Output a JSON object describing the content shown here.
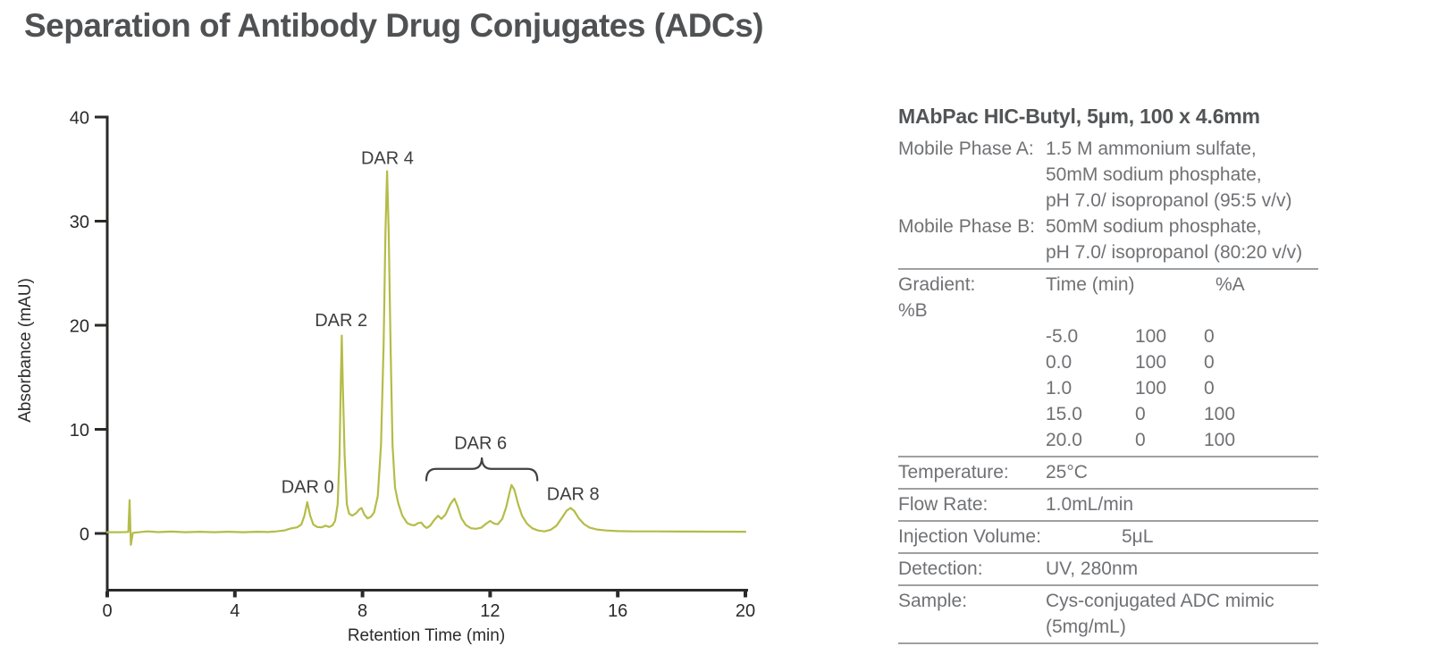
{
  "title": "Separation of Antibody Drug Conjugates (ADCs)",
  "chart_data": {
    "type": "line",
    "title": "",
    "xlabel": "Retention Time (min)",
    "ylabel": "Absorbance (mAU)",
    "xlim": [
      0,
      20
    ],
    "ylim": [
      -5.5,
      40
    ],
    "xticks": [
      "0",
      "4",
      "8",
      "12",
      "16",
      "20"
    ],
    "yticks": [
      "0",
      "10",
      "20",
      "30",
      "40"
    ],
    "grid": false,
    "legend_position": "none",
    "line_color": "#b5bc48",
    "axis_color": "#2b2a29",
    "annotation_color": "#414143",
    "series": [
      {
        "name": "UV 280nm chromatogram",
        "x_unit": "min",
        "y_unit": "mAU",
        "points": [
          [
            0.0,
            0.12
          ],
          [
            0.3,
            0.12
          ],
          [
            0.55,
            0.13
          ],
          [
            0.66,
            0.15
          ],
          [
            0.7,
            3.2
          ],
          [
            0.74,
            -1.1
          ],
          [
            0.8,
            0.05
          ],
          [
            0.95,
            0.1
          ],
          [
            1.25,
            0.2
          ],
          [
            1.6,
            0.13
          ],
          [
            2.0,
            0.18
          ],
          [
            2.45,
            0.12
          ],
          [
            2.9,
            0.16
          ],
          [
            3.35,
            0.12
          ],
          [
            3.8,
            0.16
          ],
          [
            4.25,
            0.12
          ],
          [
            4.7,
            0.16
          ],
          [
            5.05,
            0.14
          ],
          [
            5.3,
            0.2
          ],
          [
            5.55,
            0.28
          ],
          [
            5.75,
            0.48
          ],
          [
            5.95,
            0.58
          ],
          [
            6.08,
            0.85
          ],
          [
            6.18,
            1.7
          ],
          [
            6.27,
            3.0
          ],
          [
            6.36,
            1.7
          ],
          [
            6.46,
            0.85
          ],
          [
            6.58,
            0.62
          ],
          [
            6.72,
            0.58
          ],
          [
            6.84,
            0.75
          ],
          [
            6.96,
            0.62
          ],
          [
            7.06,
            0.78
          ],
          [
            7.14,
            1.2
          ],
          [
            7.22,
            2.8
          ],
          [
            7.28,
            7.5
          ],
          [
            7.32,
            14.5
          ],
          [
            7.35,
            19.0
          ],
          [
            7.38,
            14.5
          ],
          [
            7.44,
            7.5
          ],
          [
            7.51,
            2.8
          ],
          [
            7.58,
            1.9
          ],
          [
            7.68,
            1.72
          ],
          [
            7.8,
            1.95
          ],
          [
            7.9,
            2.3
          ],
          [
            7.97,
            2.45
          ],
          [
            8.06,
            1.8
          ],
          [
            8.16,
            1.45
          ],
          [
            8.26,
            1.6
          ],
          [
            8.36,
            2.0
          ],
          [
            8.48,
            3.6
          ],
          [
            8.58,
            8.5
          ],
          [
            8.66,
            18.0
          ],
          [
            8.72,
            29.0
          ],
          [
            8.77,
            34.8
          ],
          [
            8.82,
            29.0
          ],
          [
            8.88,
            18.0
          ],
          [
            8.94,
            8.5
          ],
          [
            9.02,
            4.4
          ],
          [
            9.12,
            2.9
          ],
          [
            9.25,
            1.7
          ],
          [
            9.4,
            1.0
          ],
          [
            9.52,
            0.82
          ],
          [
            9.63,
            0.78
          ],
          [
            9.74,
            1.0
          ],
          [
            9.84,
            1.05
          ],
          [
            9.93,
            0.7
          ],
          [
            10.01,
            0.52
          ],
          [
            10.12,
            0.75
          ],
          [
            10.25,
            1.3
          ],
          [
            10.37,
            1.7
          ],
          [
            10.47,
            1.4
          ],
          [
            10.6,
            1.8
          ],
          [
            10.75,
            2.8
          ],
          [
            10.88,
            3.35
          ],
          [
            10.98,
            2.6
          ],
          [
            11.1,
            1.45
          ],
          [
            11.24,
            0.8
          ],
          [
            11.4,
            0.5
          ],
          [
            11.56,
            0.45
          ],
          [
            11.72,
            0.55
          ],
          [
            11.86,
            0.9
          ],
          [
            12.0,
            1.2
          ],
          [
            12.12,
            0.95
          ],
          [
            12.24,
            0.88
          ],
          [
            12.38,
            1.4
          ],
          [
            12.5,
            2.5
          ],
          [
            12.6,
            3.8
          ],
          [
            12.67,
            4.65
          ],
          [
            12.76,
            4.2
          ],
          [
            12.88,
            2.8
          ],
          [
            13.0,
            1.7
          ],
          [
            13.15,
            0.95
          ],
          [
            13.32,
            0.5
          ],
          [
            13.5,
            0.28
          ],
          [
            13.7,
            0.2
          ],
          [
            13.9,
            0.35
          ],
          [
            14.08,
            0.75
          ],
          [
            14.25,
            1.5
          ],
          [
            14.4,
            2.2
          ],
          [
            14.52,
            2.45
          ],
          [
            14.64,
            2.15
          ],
          [
            14.78,
            1.45
          ],
          [
            14.94,
            0.9
          ],
          [
            15.12,
            0.55
          ],
          [
            15.35,
            0.38
          ],
          [
            15.65,
            0.28
          ],
          [
            16.0,
            0.22
          ],
          [
            16.5,
            0.2
          ],
          [
            17.2,
            0.2
          ],
          [
            18.0,
            0.18
          ],
          [
            19.0,
            0.17
          ],
          [
            20.0,
            0.16
          ]
        ]
      }
    ],
    "peak_labels": [
      {
        "text": "DAR 0",
        "t": 6.28,
        "mAU": 3.9
      },
      {
        "text": "DAR 2",
        "t": 7.33,
        "mAU": 19.9
      },
      {
        "text": "DAR 4",
        "t": 8.78,
        "mAU": 35.5
      },
      {
        "text": "DAR 6",
        "t": 11.7,
        "mAU": 8.1
      },
      {
        "text": "DAR 8",
        "t": 14.6,
        "mAU": 3.2
      }
    ],
    "brace": {
      "t_start": 10.0,
      "t_end": 13.48,
      "mAU_body": 6.2,
      "mAU_tip": 7.3,
      "mAU_ends": 5.1
    }
  },
  "panel": {
    "header": "MAbPac HIC-Butyl, 5μm, 100 x 4.6mm",
    "mobile_phase_a": {
      "label": "Mobile Phase A:",
      "lines": [
        "1.5 M ammonium sulfate,",
        "50mM sodium phosphate,",
        "pH 7.0/ isopropanol (95:5 v/v)"
      ]
    },
    "mobile_phase_b": {
      "label": "Mobile Phase B:",
      "lines": [
        "50mM sodium phosphate,",
        "pH 7.0/ isopropanol (80:20 v/v)"
      ]
    },
    "gradient": {
      "label": "Gradient:",
      "wrapped_label": "%B",
      "col_time_header": "Time (min)",
      "col_a_header": "%A",
      "rows": [
        {
          "time": "-5.0",
          "a": "100",
          "b": "0"
        },
        {
          "time": "0.0",
          "a": "100",
          "b": "0"
        },
        {
          "time": "1.0",
          "a": "100",
          "b": "0"
        },
        {
          "time": "15.0",
          "a": "0",
          "b": "100"
        },
        {
          "time": "20.0",
          "a": "0",
          "b": "100"
        }
      ]
    },
    "temperature": {
      "label": "Temperature:",
      "value": "25°C"
    },
    "flow_rate": {
      "label": "Flow Rate:",
      "value": "1.0mL/min"
    },
    "injection_volume": {
      "label": "Injection Volume:",
      "value": "5μL"
    },
    "detection": {
      "label": "Detection:",
      "value": "UV, 280nm"
    },
    "sample": {
      "label": "Sample:",
      "lines": [
        "Cys-conjugated ADC mimic",
        "(5mg/mL)"
      ]
    }
  }
}
